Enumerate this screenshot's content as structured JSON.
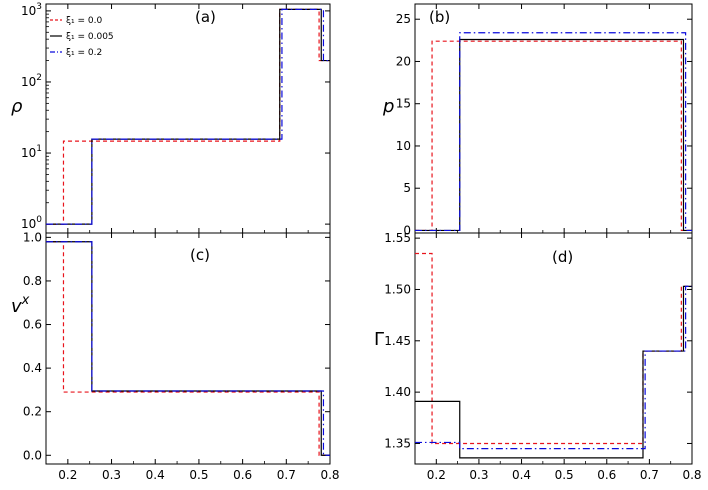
{
  "figure": {
    "legend": {
      "placement": "top-left of panel (a)",
      "entries": [
        "ξ₁ = 0.0",
        "ξ₁ = 0.005",
        "ξ₁ = 0.2"
      ]
    }
  },
  "chart_data": [
    {
      "type": "line",
      "panel_label": "(a)",
      "ylabel": "ρ",
      "yscale": "log",
      "xlim": [
        0.15,
        0.8
      ],
      "ylim": [
        0.75,
        1250
      ],
      "xticks": [
        0.2,
        0.3,
        0.4,
        0.5,
        0.6,
        0.7,
        0.8
      ],
      "xtick_labels": [],
      "yticks": [
        1,
        10,
        100,
        1000
      ],
      "ytick_labels": [
        {
          "base": "10",
          "exp": "0"
        },
        {
          "base": "10",
          "exp": "1"
        },
        {
          "base": "10",
          "exp": "2"
        },
        {
          "base": "10",
          "exp": "3"
        }
      ],
      "series": [
        {
          "name": "ξ₁ = 0.0",
          "color": "#e8141c",
          "dash": "dashed",
          "x": [
            0.15,
            0.19,
            0.19,
            0.685,
            0.685,
            0.775,
            0.775,
            0.8
          ],
          "y": [
            1,
            1,
            14.7,
            14.7,
            1050,
            1050,
            200,
            200
          ]
        },
        {
          "name": "ξ₁ = 0.005",
          "color": "#000000",
          "dash": "solid",
          "x": [
            0.15,
            0.255,
            0.255,
            0.685,
            0.685,
            0.78,
            0.78,
            0.8
          ],
          "y": [
            1,
            1,
            15.7,
            15.7,
            1050,
            1050,
            200,
            200
          ]
        },
        {
          "name": "ξ₁ = 0.2",
          "color": "#0a0adc",
          "dash": "dashdot",
          "x": [
            0.15,
            0.255,
            0.255,
            0.69,
            0.69,
            0.785,
            0.785,
            0.8
          ],
          "y": [
            1,
            1,
            15.7,
            15.7,
            1050,
            1050,
            200,
            200
          ]
        }
      ]
    },
    {
      "type": "line",
      "panel_label": "(b)",
      "ylabel": "p",
      "yscale": "linear",
      "xlim": [
        0.15,
        0.8
      ],
      "ylim": [
        -0.3,
        26.8
      ],
      "xticks": [
        0.2,
        0.3,
        0.4,
        0.5,
        0.6,
        0.7,
        0.8
      ],
      "xtick_labels": [],
      "yticks": [
        0,
        5,
        10,
        15,
        20,
        25
      ],
      "ytick_labels": [
        "0",
        "5",
        "10",
        "15",
        "20",
        "25"
      ],
      "series": [
        {
          "name": "ξ₁ = 0.0",
          "color": "#e8141c",
          "dash": "dashed",
          "x": [
            0.15,
            0.19,
            0.19,
            0.775,
            0.775,
            0.8
          ],
          "y": [
            0,
            0,
            22.4,
            22.4,
            0,
            0
          ]
        },
        {
          "name": "ξ₁ = 0.005",
          "color": "#000000",
          "dash": "solid",
          "x": [
            0.15,
            0.255,
            0.255,
            0.78,
            0.78,
            0.8
          ],
          "y": [
            0,
            0,
            22.6,
            22.6,
            0,
            0
          ]
        },
        {
          "name": "ξ₁ = 0.2",
          "color": "#0a0adc",
          "dash": "dashdot",
          "x": [
            0.15,
            0.255,
            0.255,
            0.785,
            0.785,
            0.8
          ],
          "y": [
            0,
            0,
            23.4,
            23.4,
            0,
            0
          ]
        }
      ]
    },
    {
      "type": "line",
      "panel_label": "(c)",
      "ylabel": "vˣ",
      "yscale": "linear",
      "xlim": [
        0.15,
        0.8
      ],
      "ylim": [
        -0.04,
        1.02
      ],
      "xticks": [
        0.2,
        0.3,
        0.4,
        0.5,
        0.6,
        0.7,
        0.8
      ],
      "xtick_labels": [
        "0.2",
        "0.3",
        "0.4",
        "0.5",
        "0.6",
        "0.7",
        "0.8"
      ],
      "yticks": [
        0,
        0.2,
        0.4,
        0.6,
        0.8,
        1.0
      ],
      "ytick_labels": [
        "0.0",
        "0.2",
        "0.4",
        "0.6",
        "0.8",
        "1.0"
      ],
      "series": [
        {
          "name": "ξ₁ = 0.0",
          "color": "#e8141c",
          "dash": "dashed",
          "x": [
            0.15,
            0.19,
            0.19,
            0.775,
            0.775,
            0.8
          ],
          "y": [
            0.98,
            0.98,
            0.29,
            0.29,
            0,
            0
          ]
        },
        {
          "name": "ξ₁ = 0.005",
          "color": "#000000",
          "dash": "solid",
          "x": [
            0.15,
            0.255,
            0.255,
            0.78,
            0.78,
            0.8
          ],
          "y": [
            0.98,
            0.98,
            0.295,
            0.295,
            0,
            0
          ]
        },
        {
          "name": "ξ₁ = 0.2",
          "color": "#0a0adc",
          "dash": "dashdot",
          "x": [
            0.15,
            0.255,
            0.255,
            0.785,
            0.785,
            0.8
          ],
          "y": [
            0.98,
            0.98,
            0.295,
            0.295,
            0,
            0
          ]
        }
      ]
    },
    {
      "type": "line",
      "panel_label": "(d)",
      "ylabel": "Γ",
      "yscale": "linear",
      "xlim": [
        0.15,
        0.8
      ],
      "ylim": [
        1.33,
        1.555
      ],
      "xticks": [
        0.2,
        0.3,
        0.4,
        0.5,
        0.6,
        0.7,
        0.8
      ],
      "xtick_labels": [
        "0.2",
        "0.3",
        "0.4",
        "0.5",
        "0.6",
        "0.7",
        "0.8"
      ],
      "yticks": [
        1.35,
        1.4,
        1.45,
        1.5,
        1.55
      ],
      "ytick_labels": [
        "1.35",
        "1.40",
        "1.45",
        "1.50",
        "1.55"
      ],
      "series": [
        {
          "name": "ξ₁ = 0.0",
          "color": "#e8141c",
          "dash": "dashed",
          "x": [
            0.15,
            0.19,
            0.19,
            0.685,
            0.685,
            0.775,
            0.775,
            0.8
          ],
          "y": [
            1.535,
            1.535,
            1.35,
            1.35,
            1.44,
            1.44,
            1.503,
            1.503
          ]
        },
        {
          "name": "ξ₁ = 0.005",
          "color": "#000000",
          "dash": "solid",
          "x": [
            0.15,
            0.255,
            0.255,
            0.685,
            0.685,
            0.78,
            0.78,
            0.8
          ],
          "y": [
            1.391,
            1.391,
            1.336,
            1.336,
            1.44,
            1.44,
            1.503,
            1.503
          ]
        },
        {
          "name": "ξ₁ = 0.2",
          "color": "#0a0adc",
          "dash": "dashdot",
          "x": [
            0.15,
            0.255,
            0.255,
            0.69,
            0.69,
            0.785,
            0.785,
            0.8
          ],
          "y": [
            1.351,
            1.351,
            1.345,
            1.345,
            1.44,
            1.44,
            1.503,
            1.503
          ]
        }
      ]
    }
  ]
}
